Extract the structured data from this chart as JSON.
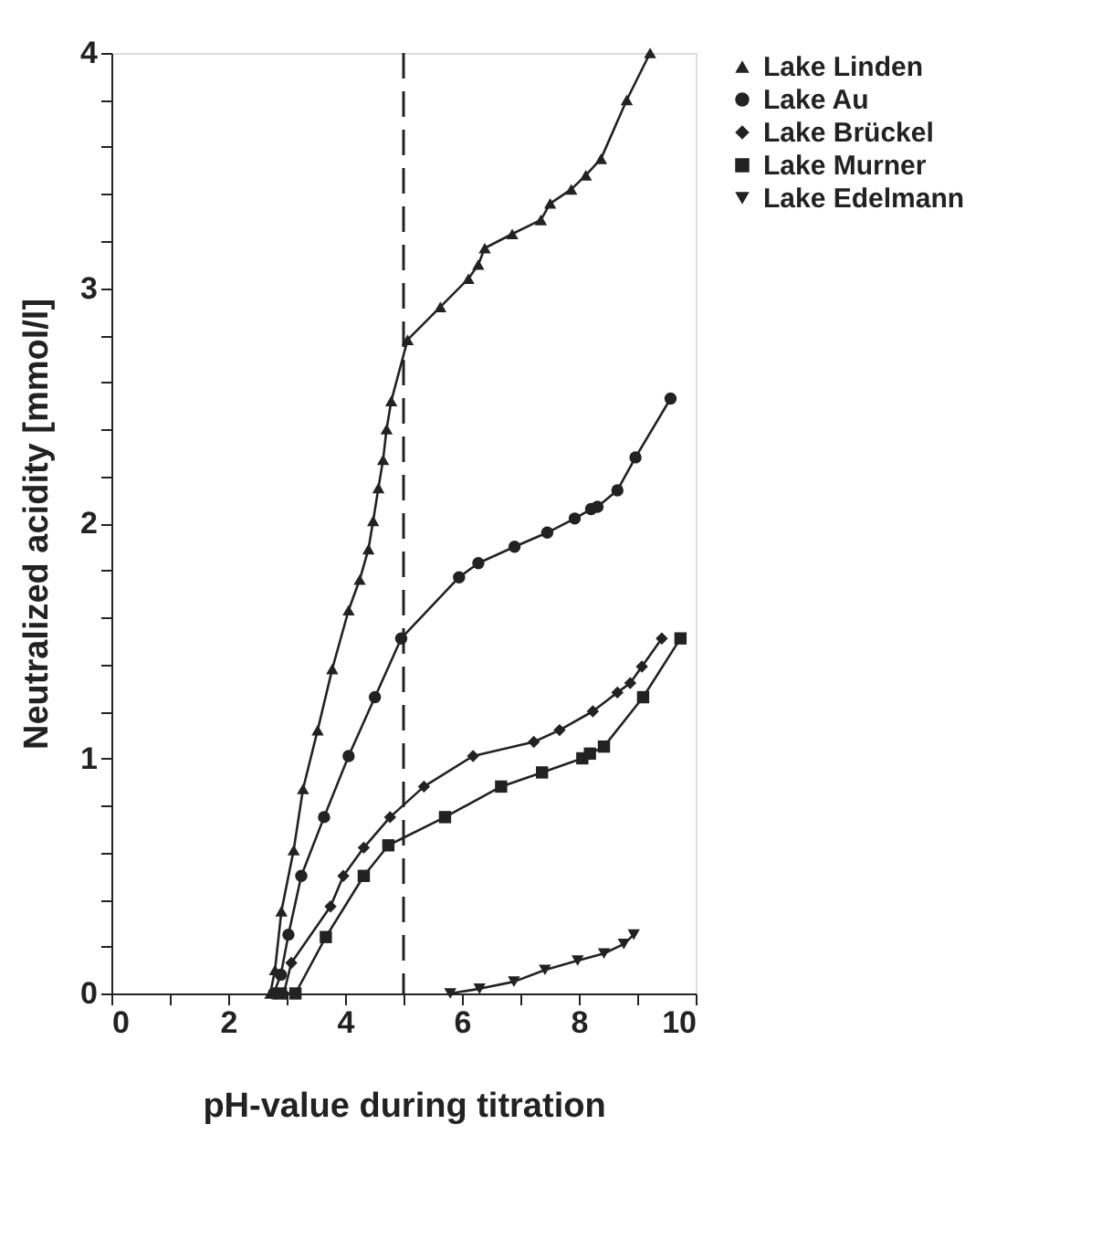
{
  "chart_data": {
    "type": "line",
    "xlabel": "pH-value during titration",
    "ylabel": "Neutralized acidity [mmol/l]",
    "xlim": [
      0,
      10
    ],
    "ylim": [
      0,
      4
    ],
    "xticks": [
      0,
      {
        "value": 1,
        "label": null
      },
      2,
      {
        "value": 3,
        "label": null
      },
      4,
      {
        "value": 5,
        "label": null
      },
      6,
      {
        "value": 7,
        "label": null
      },
      8,
      {
        "value": 9,
        "label": null
      },
      10
    ],
    "yticks": [
      0,
      {
        "value": 0.2,
        "label": null
      },
      {
        "value": 0.4,
        "label": null
      },
      {
        "value": 0.6,
        "label": null
      },
      {
        "value": 0.8,
        "label": null
      },
      1,
      {
        "value": 1.2,
        "label": null
      },
      {
        "value": 1.4,
        "label": null
      },
      {
        "value": 1.6,
        "label": null
      },
      {
        "value": 1.8,
        "label": null
      },
      2,
      {
        "value": 2.2,
        "label": null
      },
      {
        "value": 2.4,
        "label": null
      },
      {
        "value": 2.6,
        "label": null
      },
      {
        "value": 2.8,
        "label": null
      },
      3,
      {
        "value": 3.2,
        "label": null
      },
      {
        "value": 3.4,
        "label": null
      },
      {
        "value": 3.6,
        "label": null
      },
      {
        "value": 3.8,
        "label": null
      },
      4
    ],
    "grid": false,
    "legend": "right",
    "line_style": "solid",
    "ref_lines": [
      {
        "axis": "x",
        "value": 5,
        "label": null,
        "line_style": "dashed",
        "color": "#222222"
      }
    ],
    "series": [
      {
        "name": "Lake Linden",
        "color": "#222222",
        "marker": "triangle",
        "x": [
          2.72,
          2.8,
          2.91,
          3.12,
          3.28,
          3.53,
          3.78,
          4.06,
          4.25,
          4.4,
          4.48,
          4.57,
          4.65,
          4.71,
          4.79,
          5.07,
          5.63,
          6.11,
          6.28,
          6.39,
          6.86,
          7.35,
          7.51,
          7.87,
          8.12,
          8.38,
          8.82,
          9.22
        ],
        "values": [
          0,
          0.1,
          0.35,
          0.61,
          0.87,
          1.12,
          1.38,
          1.63,
          1.76,
          1.89,
          2.01,
          2.15,
          2.27,
          2.4,
          2.52,
          2.78,
          2.92,
          3.04,
          3.1,
          3.17,
          3.23,
          3.29,
          3.36,
          3.42,
          3.48,
          3.55,
          3.8,
          4.0
        ]
      },
      {
        "name": "Lake Au",
        "color": "#222222",
        "marker": "circle",
        "x": [
          2.78,
          2.9,
          3.03,
          3.25,
          3.64,
          4.06,
          4.51,
          4.96,
          5.95,
          6.28,
          6.9,
          7.46,
          7.93,
          8.21,
          8.32,
          8.66,
          8.97,
          9.57
        ],
        "values": [
          0,
          0.08,
          0.25,
          0.5,
          0.75,
          1.01,
          1.26,
          1.51,
          1.77,
          1.83,
          1.9,
          1.96,
          2.02,
          2.06,
          2.07,
          2.14,
          2.28,
          2.53
        ]
      },
      {
        "name": "Lake Brückel",
        "color": "#222222",
        "marker": "diamond",
        "x": [
          2.95,
          3.08,
          3.75,
          3.97,
          4.32,
          4.77,
          5.35,
          6.19,
          7.23,
          7.67,
          8.24,
          8.66,
          8.88,
          9.08,
          9.42
        ],
        "values": [
          0,
          0.13,
          0.37,
          0.5,
          0.62,
          0.75,
          0.88,
          1.01,
          1.07,
          1.12,
          1.2,
          1.28,
          1.32,
          1.39,
          1.51
        ]
      },
      {
        "name": "Lake Murner",
        "color": "#222222",
        "marker": "square",
        "x": [
          2.9,
          3.15,
          3.67,
          4.32,
          4.74,
          5.71,
          6.67,
          7.37,
          8.06,
          8.19,
          8.43,
          9.1,
          9.74
        ],
        "values": [
          0,
          0,
          0.24,
          0.5,
          0.63,
          0.75,
          0.88,
          0.94,
          1.0,
          1.02,
          1.05,
          1.26,
          1.51
        ]
      },
      {
        "name": "Lake Edelmann",
        "color": "#222222",
        "marker": "triangle-down",
        "x": [
          5.8,
          6.3,
          6.89,
          7.42,
          7.98,
          8.43,
          8.77,
          8.94
        ],
        "values": [
          0,
          0.02,
          0.05,
          0.1,
          0.14,
          0.17,
          0.21,
          0.25
        ]
      }
    ]
  }
}
